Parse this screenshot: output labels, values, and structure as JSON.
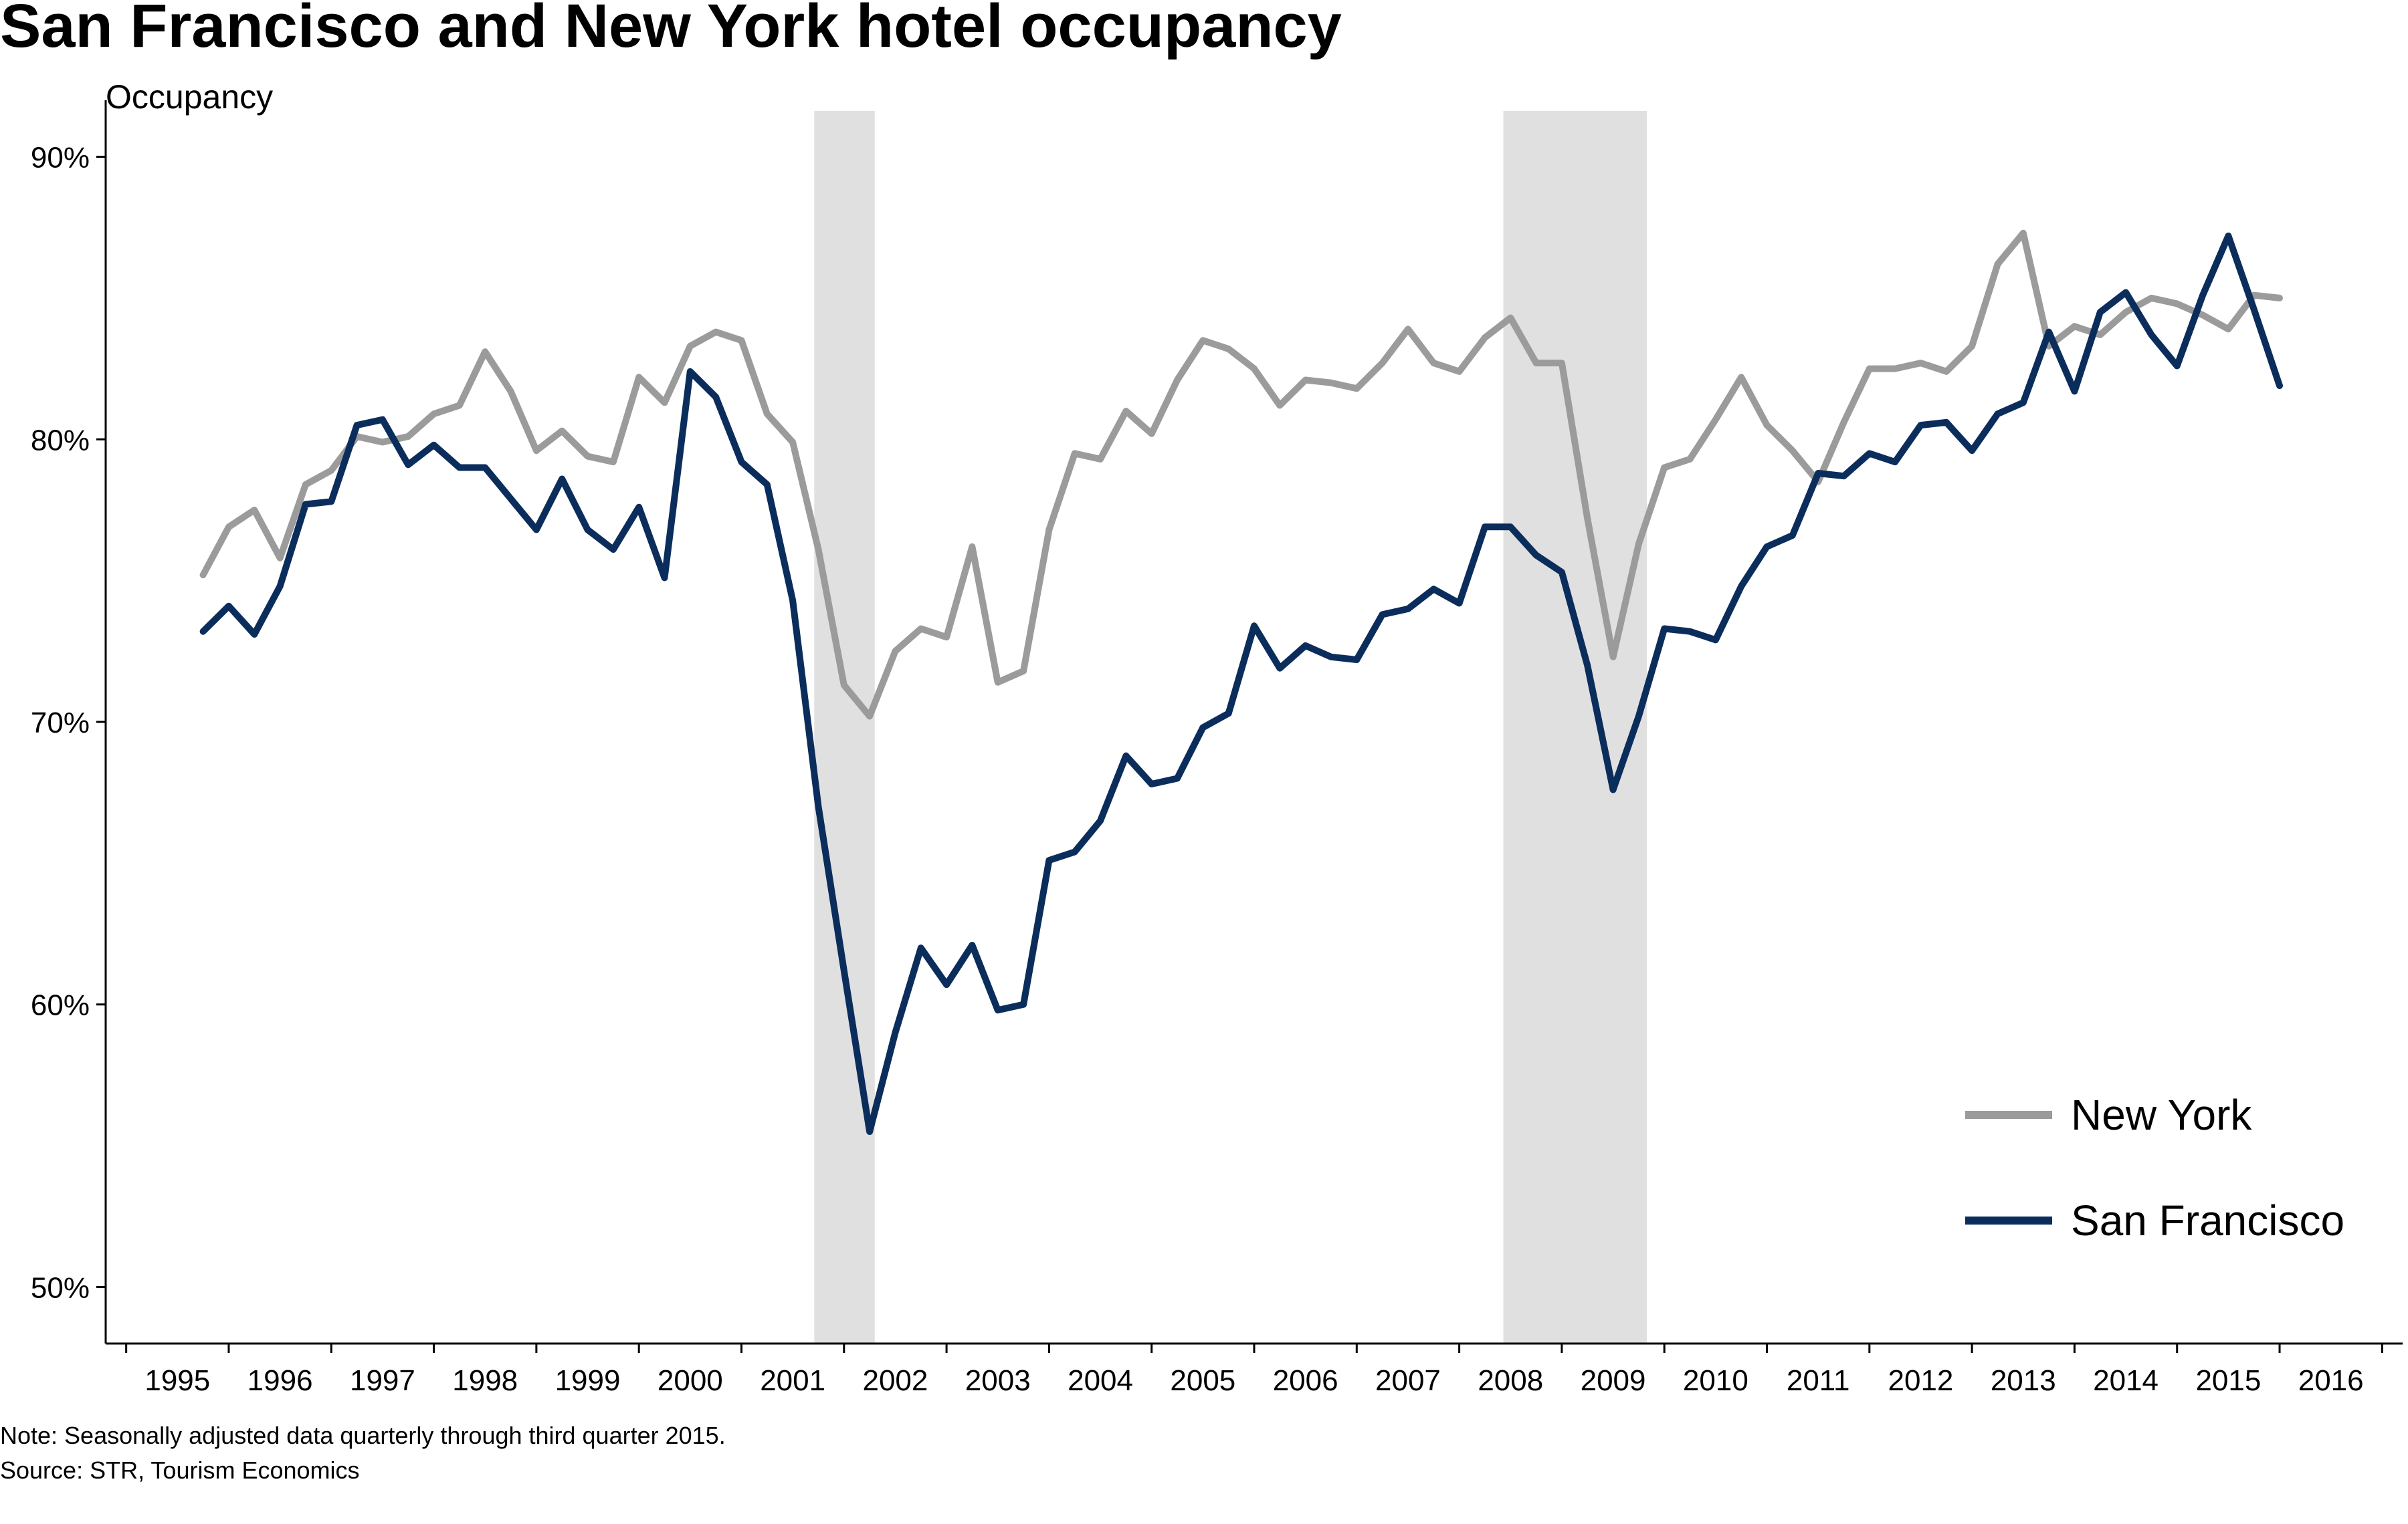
{
  "chart_data": {
    "type": "line",
    "title": "San Francisco and New York hotel occupancy",
    "ylabel": "Occupancy",
    "xlabel": "",
    "ylim": [
      0.48,
      0.92
    ],
    "xlim": [
      1994.3,
      2016.7
    ],
    "yticks": [
      {
        "value": 0.5,
        "label": "50%"
      },
      {
        "value": 0.6,
        "label": "60%"
      },
      {
        "value": 0.7,
        "label": "70%"
      },
      {
        "value": 0.8,
        "label": "80%"
      },
      {
        "value": 0.9,
        "label": "90%"
      }
    ],
    "xticks": [
      {
        "value": 1995,
        "label": "1995"
      },
      {
        "value": 1996,
        "label": "1996"
      },
      {
        "value": 1997,
        "label": "1997"
      },
      {
        "value": 1998,
        "label": "1998"
      },
      {
        "value": 1999,
        "label": "1999"
      },
      {
        "value": 2000,
        "label": "2000"
      },
      {
        "value": 2001,
        "label": "2001"
      },
      {
        "value": 2002,
        "label": "2002"
      },
      {
        "value": 2003,
        "label": "2003"
      },
      {
        "value": 2004,
        "label": "2004"
      },
      {
        "value": 2005,
        "label": "2005"
      },
      {
        "value": 2006,
        "label": "2006"
      },
      {
        "value": 2007,
        "label": "2007"
      },
      {
        "value": 2008,
        "label": "2008"
      },
      {
        "value": 2009,
        "label": "2009"
      },
      {
        "value": 2010,
        "label": "2010"
      },
      {
        "value": 2011,
        "label": "2011"
      },
      {
        "value": 2012,
        "label": "2012"
      },
      {
        "value": 2013,
        "label": "2013"
      },
      {
        "value": 2014,
        "label": "2014"
      },
      {
        "value": 2015,
        "label": "2015"
      },
      {
        "value": 2016,
        "label": "2016"
      }
    ],
    "recessions": [
      {
        "start": 2001.21,
        "end": 2001.8
      },
      {
        "start": 2007.93,
        "end": 2009.33
      }
    ],
    "x": [
      1995.25,
      1995.5,
      1995.75,
      1996.0,
      1996.25,
      1996.5,
      1996.75,
      1997.0,
      1997.25,
      1997.5,
      1997.75,
      1998.0,
      1998.25,
      1998.5,
      1998.75,
      1999.0,
      1999.25,
      1999.5,
      1999.75,
      2000.0,
      2000.25,
      2000.5,
      2000.75,
      2001.0,
      2001.25,
      2001.5,
      2001.75,
      2002.0,
      2002.25,
      2002.5,
      2002.75,
      2003.0,
      2003.25,
      2003.5,
      2003.75,
      2004.0,
      2004.25,
      2004.5,
      2004.75,
      2005.0,
      2005.25,
      2005.5,
      2005.75,
      2006.0,
      2006.25,
      2006.5,
      2006.75,
      2007.0,
      2007.25,
      2007.5,
      2007.75,
      2008.0,
      2008.25,
      2008.5,
      2008.75,
      2009.0,
      2009.25,
      2009.5,
      2009.75,
      2010.0,
      2010.25,
      2010.5,
      2010.75,
      2011.0,
      2011.25,
      2011.5,
      2011.75,
      2012.0,
      2012.25,
      2012.5,
      2012.75,
      2013.0,
      2013.25,
      2013.5,
      2013.75,
      2014.0,
      2014.25,
      2014.5,
      2014.75,
      2015.0,
      2015.25,
      2015.5
    ],
    "series": [
      {
        "name": "New York",
        "color": "#9b9b9b",
        "values": [
          0.752,
          0.769,
          0.775,
          0.758,
          0.784,
          0.789,
          0.801,
          0.799,
          0.801,
          0.809,
          0.812,
          0.831,
          0.817,
          0.796,
          0.803,
          0.794,
          0.792,
          0.822,
          0.813,
          0.833,
          0.838,
          0.835,
          0.809,
          0.799,
          0.761,
          0.713,
          0.702,
          0.725,
          0.733,
          0.73,
          0.762,
          0.714,
          0.718,
          0.768,
          0.795,
          0.793,
          0.81,
          0.802,
          0.821,
          0.835,
          0.832,
          0.825,
          0.812,
          0.821,
          0.82,
          0.818,
          0.827,
          0.839,
          0.827,
          0.824,
          0.836,
          0.843,
          0.827,
          0.827,
          0.772,
          0.723,
          0.763,
          0.79,
          0.793,
          0.807,
          0.822,
          0.805,
          0.796,
          0.785,
          0.806,
          0.825,
          0.825,
          0.827,
          0.824,
          0.833,
          0.862,
          0.873,
          0.833,
          0.84,
          0.837,
          0.845,
          0.85,
          0.848,
          0.844,
          0.839,
          0.851,
          0.85
        ]
      },
      {
        "name": "San Francisco",
        "color": "#0b2d5c",
        "values": [
          0.732,
          0.741,
          0.731,
          0.748,
          0.777,
          0.778,
          0.805,
          0.807,
          0.791,
          0.798,
          0.79,
          0.79,
          0.779,
          0.768,
          0.786,
          0.768,
          0.761,
          0.776,
          0.751,
          0.824,
          0.815,
          0.792,
          0.784,
          0.743,
          0.67,
          0.612,
          0.555,
          0.59,
          0.62,
          0.607,
          0.621,
          0.598,
          0.6,
          0.651,
          0.654,
          0.665,
          0.688,
          0.678,
          0.68,
          0.698,
          0.703,
          0.734,
          0.719,
          0.727,
          0.723,
          0.722,
          0.738,
          0.74,
          0.747,
          0.742,
          0.769,
          0.769,
          0.759,
          0.753,
          0.72,
          0.676,
          0.702,
          0.733,
          0.732,
          0.729,
          0.748,
          0.762,
          0.766,
          0.788,
          0.787,
          0.795,
          0.792,
          0.805,
          0.806,
          0.796,
          0.809,
          0.813,
          0.838,
          0.817,
          0.845,
          0.852,
          0.837,
          0.826,
          0.851,
          0.872,
          0.846,
          0.819
        ]
      }
    ],
    "legend": {
      "position": "bottom-right",
      "items": [
        "New York",
        "San Francisco"
      ]
    },
    "grid": false,
    "note": "Note: Seasonally adjusted data quarterly through third quarter 2015.",
    "source": "Source: STR, Tourism Economics"
  }
}
